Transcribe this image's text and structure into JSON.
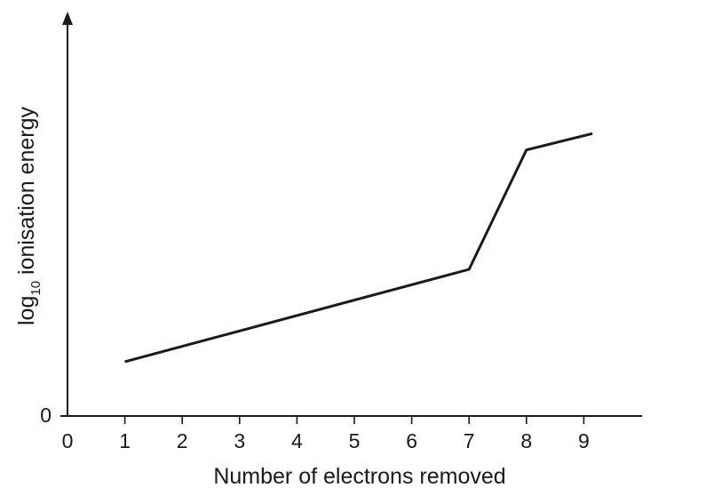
{
  "chart_data": {
    "type": "line",
    "title": "",
    "xlabel": "Number of electrons removed",
    "ylabel": {
      "prefix": "log",
      "subscript": "10",
      "suffix": " ionisation energy"
    },
    "x_ticks": [
      "0",
      "1",
      "2",
      "3",
      "4",
      "5",
      "6",
      "7",
      "8",
      "9"
    ],
    "y_ticks": [
      "0"
    ],
    "xlim": [
      0,
      10
    ],
    "ylim": [
      0,
      7.3
    ],
    "grid": false,
    "series": [
      {
        "x": [
          1,
          7,
          8,
          9.15
        ],
        "y": [
          1,
          2.7,
          4.9,
          5.2
        ]
      }
    ]
  }
}
